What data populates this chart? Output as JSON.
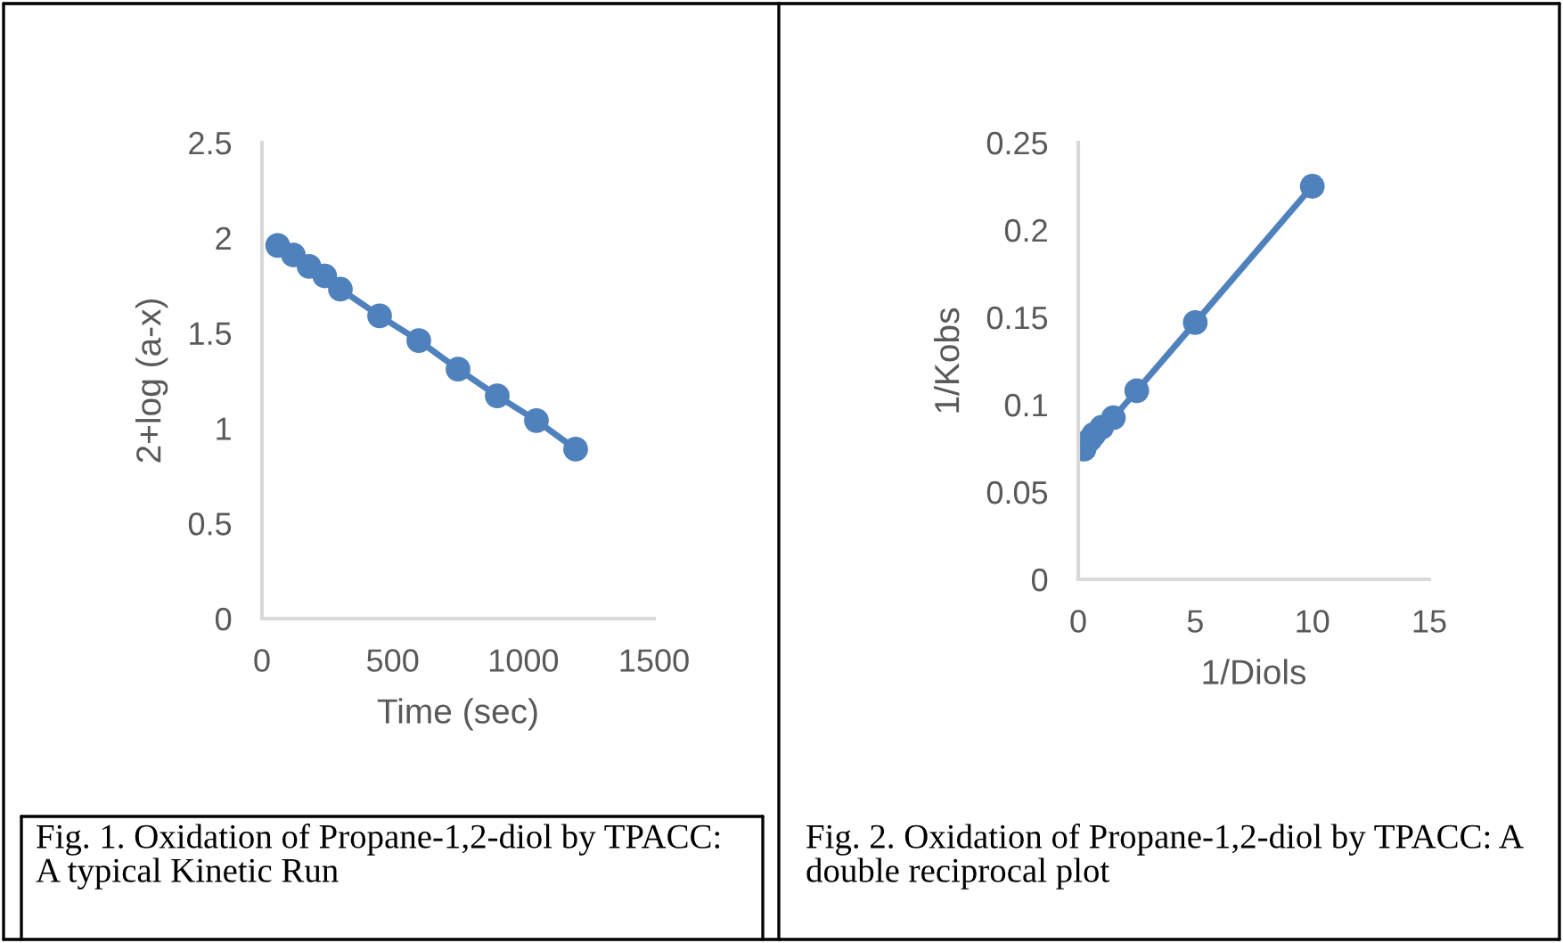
{
  "chart_data": [
    {
      "type": "line",
      "xlabel": "Time (sec)",
      "ylabel": "2+log (a-x)",
      "annotations": [
        "Fig. 1. Oxidation of Propane-1,2-diol by TPACC: A typical Kinetic Run"
      ],
      "series": [
        {
          "color": "#4f81bd",
          "x": [
            60,
            120,
            180,
            240,
            300,
            450,
            600,
            750,
            900,
            1050,
            1200
          ],
          "values": [
            1.96,
            1.91,
            1.85,
            1.8,
            1.73,
            1.59,
            1.46,
            1.31,
            1.17,
            1.04,
            0.89
          ]
        }
      ],
      "xlim": [
        0,
        1500
      ],
      "xticks": [
        0,
        500,
        1000,
        1500
      ],
      "ylim": [
        0,
        2.5
      ],
      "yticks": [
        0,
        0.5,
        1,
        1.5,
        2,
        2.5
      ],
      "marker": "circle",
      "grid": false,
      "legend": false
    },
    {
      "type": "line",
      "xlabel": "1/Diols",
      "ylabel": "1/Kobs",
      "annotations": [
        "Fig. 2. Oxidation of Propane-1,2-diol by TPACC: A double reciprocal plot"
      ],
      "series": [
        {
          "color": "#4f81bd",
          "x": [
            0.25,
            0.5,
            0.67,
            1.0,
            1.5,
            2.5,
            5,
            10
          ],
          "values": [
            0.0745,
            0.08,
            0.083,
            0.087,
            0.0925,
            0.108,
            0.147,
            0.225
          ]
        }
      ],
      "xlim": [
        0,
        15
      ],
      "xticks": [
        0,
        5,
        10,
        15
      ],
      "ylim": [
        0,
        0.25
      ],
      "yticks": [
        0,
        0.05,
        0.1,
        0.15,
        0.2,
        0.25
      ],
      "marker": "circle",
      "grid": false,
      "legend": false
    }
  ]
}
